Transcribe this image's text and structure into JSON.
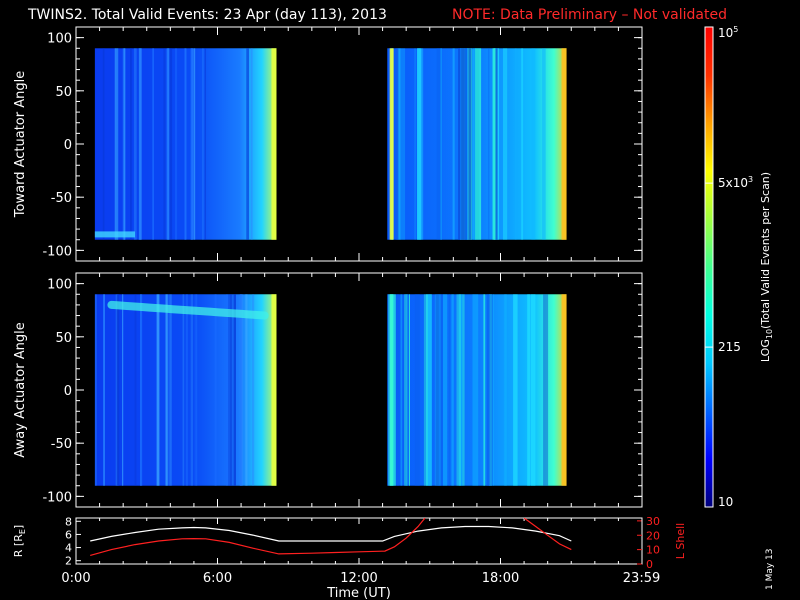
{
  "header": {
    "title": "TWINS2. Total Valid Events: 23 Apr (day 113), 2013",
    "note": "NOTE: Data Preliminary – Not validated",
    "note_color": "#ff2a2a"
  },
  "footer": {
    "stamp": "1 May 13"
  },
  "chart_data": [
    {
      "type": "heatmap",
      "panel": "top",
      "ylabel": "Toward Actuator Angle",
      "ylim": [
        -110,
        110
      ],
      "yticks": [
        "100",
        "50",
        "0",
        "-50",
        "-100"
      ],
      "ytick_values": [
        100,
        50,
        0,
        -50,
        -100
      ],
      "x_range_hours": [
        0,
        24
      ],
      "data_blocks_hours": [
        [
          0.8,
          8.5
        ],
        [
          13.2,
          20.8
        ]
      ],
      "angle_range": [
        -90,
        90
      ],
      "feature": "faint low-count strip near -85 deg at 0.8-2.5 UT"
    },
    {
      "type": "heatmap",
      "panel": "bottom",
      "ylabel": "Away Actuator Angle",
      "ylim": [
        -110,
        110
      ],
      "yticks": [
        "100",
        "50",
        "0",
        "-50",
        "-100"
      ],
      "ytick_values": [
        100,
        50,
        0,
        -50,
        -100
      ],
      "x_range_hours": [
        0,
        24
      ],
      "data_blocks_hours": [
        [
          0.8,
          8.5
        ],
        [
          13.2,
          20.8
        ]
      ],
      "angle_range": [
        -90,
        90
      ],
      "feature": "bright cyan band near +80 deg decreasing to +70 deg from 1.5-8 UT"
    },
    {
      "type": "line",
      "panel": "orbit",
      "ylabel": "R [R",
      "ylabel_sub": "E",
      "ylabel_end": "]",
      "y2label": "L Shell",
      "yticks_left": [
        "8",
        "6",
        "4",
        "2"
      ],
      "yticks_left_values": [
        8,
        6,
        4,
        2
      ],
      "ylim_left": [
        1.5,
        8.5
      ],
      "yticks_right": [
        "30",
        "20",
        "10",
        "0"
      ],
      "yticks_right_values": [
        30,
        20,
        10,
        0
      ],
      "ylim_right": [
        0,
        32
      ],
      "series": [
        {
          "color": "#ffffff",
          "x": [
            0.6,
            1.5,
            2.5,
            3.5,
            4.5,
            5.0,
            5.5,
            6.5,
            7.5,
            8.6,
            10,
            11,
            12,
            13,
            13.5,
            14.5,
            15.5,
            16.5,
            17.5,
            18.5,
            19.5,
            20.5,
            21.0
          ],
          "y": [
            5.0,
            5.7,
            6.3,
            6.8,
            7.0,
            7.05,
            7.0,
            6.6,
            5.9,
            5.0,
            5.0,
            5.0,
            5.0,
            5.0,
            5.7,
            6.5,
            7.0,
            7.2,
            7.2,
            7.0,
            6.5,
            5.8,
            5.0
          ]
        },
        {
          "color": "#ff2020",
          "axis": "right",
          "x": [
            0.6,
            1.5,
            2.5,
            3.5,
            4.5,
            5.0,
            5.5,
            6.5,
            7.5,
            8.6,
            10,
            11,
            12,
            13.1,
            13.5,
            14.0,
            14.5,
            14.8
          ],
          "y": [
            6,
            10,
            13.5,
            16,
            17.5,
            17.7,
            17.5,
            15,
            11,
            7,
            7.5,
            8,
            8.5,
            9,
            12,
            18,
            26,
            32
          ]
        },
        {
          "color": "#ff2020",
          "axis": "right",
          "x": [
            19.0,
            19.5,
            20.0,
            20.5,
            21.0
          ],
          "y": [
            32,
            26,
            20,
            14,
            10
          ]
        }
      ]
    }
  ],
  "x_axis": {
    "label": "Time (UT)",
    "ticks": [
      "0:00",
      "6:00",
      "12:00",
      "18:00",
      "23:59"
    ],
    "tick_values": [
      0,
      6,
      12,
      18,
      23.98
    ]
  },
  "colorbar": {
    "label_prefix": "LOG",
    "label_sub": "10",
    "label_rest": "(Total Valid Events per Scan)",
    "scale": "log",
    "range": [
      10,
      100000
    ],
    "ticks": [
      {
        "base": "10",
        "exp": "5",
        "value": 100000
      },
      {
        "base": "5x10",
        "exp": "3",
        "value": 5000
      },
      {
        "base": "215",
        "exp": "",
        "value": 215
      },
      {
        "base": "10",
        "exp": "",
        "value": 10
      }
    ],
    "colors": [
      "#00007a",
      "#0000ff",
      "#0064ff",
      "#00c8ff",
      "#00ffe0",
      "#40ff90",
      "#a0ff40",
      "#ffff00",
      "#ffa000",
      "#ff3000",
      "#ff0000"
    ]
  }
}
